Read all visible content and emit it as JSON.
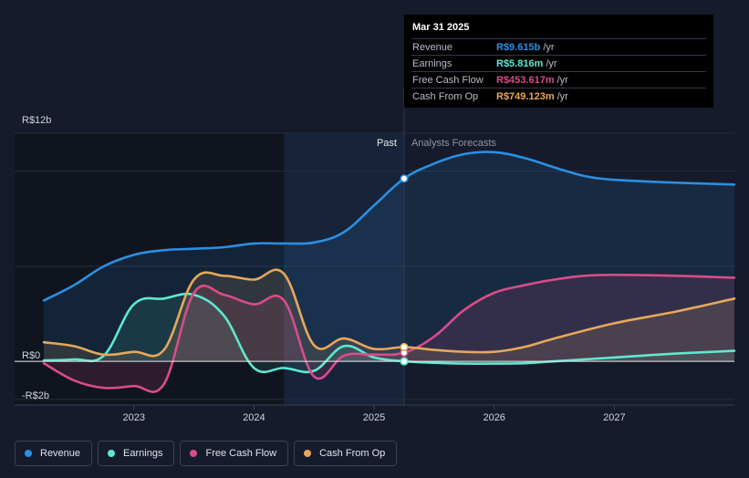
{
  "chart_data": {
    "type": "line",
    "title": "",
    "ylabel": "",
    "xlabel": "",
    "ylim": [
      -2.3,
      12
    ],
    "xlim": [
      2022.25,
      2028.0
    ],
    "y_ticks": [
      {
        "value": 12,
        "label": "R$12b"
      },
      {
        "value": 0,
        "label": "R$0"
      },
      {
        "value": -2,
        "label": "-R$2b"
      }
    ],
    "x_ticks": [
      {
        "value": 2023,
        "label": "2023"
      },
      {
        "value": 2024,
        "label": "2024"
      },
      {
        "value": 2025,
        "label": "2025"
      },
      {
        "value": 2026,
        "label": "2026"
      },
      {
        "value": 2027,
        "label": "2027"
      }
    ],
    "past_label": "Past",
    "forecast_label": "Analysts Forecasts",
    "forecast_start": 2025.25,
    "dark_region": [
      2022.25,
      2024.25
    ],
    "series": [
      {
        "name": "Revenue",
        "color": "#2b8fe3",
        "marker_value": 9.615,
        "points": [
          [
            2022.25,
            3.2
          ],
          [
            2022.5,
            4.0
          ],
          [
            2022.75,
            5.0
          ],
          [
            2023.0,
            5.6
          ],
          [
            2023.25,
            5.85
          ],
          [
            2023.5,
            5.92
          ],
          [
            2023.75,
            6.0
          ],
          [
            2024.0,
            6.2
          ],
          [
            2024.25,
            6.2
          ],
          [
            2024.5,
            6.25
          ],
          [
            2024.75,
            6.8
          ],
          [
            2025.0,
            8.2
          ],
          [
            2025.25,
            9.615
          ],
          [
            2025.5,
            10.4
          ],
          [
            2025.75,
            10.9
          ],
          [
            2026.0,
            11.0
          ],
          [
            2026.25,
            10.7
          ],
          [
            2026.5,
            10.2
          ],
          [
            2026.75,
            9.75
          ],
          [
            2027.0,
            9.55
          ],
          [
            2027.5,
            9.4
          ],
          [
            2028.0,
            9.3
          ]
        ]
      },
      {
        "name": "Earnings",
        "color": "#5fe8d1",
        "marker_value": 0.0,
        "points": [
          [
            2022.25,
            0.05
          ],
          [
            2022.5,
            0.1
          ],
          [
            2022.75,
            0.3
          ],
          [
            2023.0,
            3.0
          ],
          [
            2023.25,
            3.3
          ],
          [
            2023.5,
            3.5
          ],
          [
            2023.75,
            2.4
          ],
          [
            2024.0,
            -0.35
          ],
          [
            2024.25,
            -0.35
          ],
          [
            2024.5,
            -0.5
          ],
          [
            2024.75,
            0.8
          ],
          [
            2025.0,
            0.2
          ],
          [
            2025.25,
            0.0
          ],
          [
            2025.5,
            -0.08
          ],
          [
            2025.75,
            -0.12
          ],
          [
            2026.0,
            -0.12
          ],
          [
            2026.25,
            -0.1
          ],
          [
            2026.5,
            0.0
          ],
          [
            2027.0,
            0.2
          ],
          [
            2027.5,
            0.4
          ],
          [
            2028.0,
            0.55
          ]
        ]
      },
      {
        "name": "Free Cash Flow",
        "color": "#d94c8a",
        "marker_value": 0.4536,
        "points": [
          [
            2022.25,
            -0.1
          ],
          [
            2022.5,
            -1.0
          ],
          [
            2022.75,
            -1.4
          ],
          [
            2023.0,
            -1.3
          ],
          [
            2023.25,
            -1.2
          ],
          [
            2023.5,
            3.6
          ],
          [
            2023.75,
            3.5
          ],
          [
            2024.0,
            3.0
          ],
          [
            2024.25,
            3.2
          ],
          [
            2024.5,
            -0.8
          ],
          [
            2024.75,
            0.3
          ],
          [
            2025.0,
            0.35
          ],
          [
            2025.25,
            0.4536
          ],
          [
            2025.5,
            1.3
          ],
          [
            2025.75,
            2.7
          ],
          [
            2026.0,
            3.6
          ],
          [
            2026.25,
            4.0
          ],
          [
            2026.5,
            4.3
          ],
          [
            2026.75,
            4.5
          ],
          [
            2027.0,
            4.55
          ],
          [
            2027.5,
            4.5
          ],
          [
            2028.0,
            4.4
          ]
        ]
      },
      {
        "name": "Cash From Op",
        "color": "#e6a85a",
        "marker_value": 0.749,
        "points": [
          [
            2022.25,
            1.0
          ],
          [
            2022.5,
            0.8
          ],
          [
            2022.75,
            0.35
          ],
          [
            2023.0,
            0.5
          ],
          [
            2023.25,
            0.6
          ],
          [
            2023.5,
            4.3
          ],
          [
            2023.75,
            4.5
          ],
          [
            2024.0,
            4.3
          ],
          [
            2024.25,
            4.6
          ],
          [
            2024.5,
            0.85
          ],
          [
            2024.75,
            1.2
          ],
          [
            2025.0,
            0.65
          ],
          [
            2025.25,
            0.749
          ],
          [
            2025.5,
            0.6
          ],
          [
            2025.75,
            0.5
          ],
          [
            2026.0,
            0.5
          ],
          [
            2026.25,
            0.75
          ],
          [
            2026.5,
            1.2
          ],
          [
            2027.0,
            2.0
          ],
          [
            2027.5,
            2.6
          ],
          [
            2028.0,
            3.3
          ]
        ]
      }
    ]
  },
  "tooltip": {
    "date": "Mar 31 2025",
    "unit": "/yr",
    "rows": [
      {
        "label": "Revenue",
        "value": "R$9.615b",
        "color": "#2b8fe3"
      },
      {
        "label": "Earnings",
        "value": "R$5.816m",
        "color": "#5fe8d1"
      },
      {
        "label": "Free Cash Flow",
        "value": "R$453.617m",
        "color": "#d94c8a"
      },
      {
        "label": "Cash From Op",
        "value": "R$749.123m",
        "color": "#e6a85a"
      }
    ]
  },
  "legend": [
    {
      "label": "Revenue",
      "color": "#2b8fe3"
    },
    {
      "label": "Earnings",
      "color": "#5fe8d1"
    },
    {
      "label": "Free Cash Flow",
      "color": "#d94c8a"
    },
    {
      "label": "Cash From Op",
      "color": "#e6a85a"
    }
  ]
}
